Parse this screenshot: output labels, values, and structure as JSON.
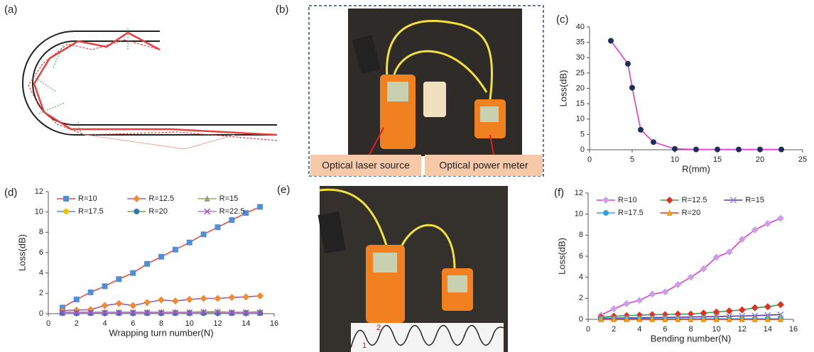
{
  "figure": {
    "panels": {
      "a": "(a)",
      "b": "(b)",
      "e": "(e)"
    },
    "captions": [
      "Optical laser source",
      "Optical power meter"
    ],
    "photo_marks": [
      "1",
      "2"
    ]
  },
  "chart_data": [
    {
      "type": "line",
      "label": "(c)",
      "xlabel": "R(mm)",
      "ylabel": "Loss(dB)",
      "x": [
        2.5,
        4.5,
        5,
        6,
        7.5,
        10,
        12.5,
        15,
        17.5,
        20,
        22.5
      ],
      "series": [
        {
          "color": "#e23cc6",
          "marker": "circle",
          "marker_color": "#1f2d5a",
          "values": [
            35.5,
            28,
            20.2,
            6.5,
            2.5,
            0.3,
            0.1,
            0.1,
            0.1,
            0.1,
            0.1
          ]
        }
      ],
      "xlim": [
        0,
        25
      ],
      "xticks": [
        0,
        5,
        10,
        15,
        20,
        25
      ],
      "ylim": [
        0,
        40
      ],
      "yticks": [
        0,
        5,
        10,
        15,
        20,
        25,
        30,
        35,
        40
      ]
    },
    {
      "type": "line",
      "label": "(d)",
      "xlabel": "Wrapping turn number(N)",
      "ylabel": "Loss(dB)",
      "x": [
        1,
        2,
        3,
        4,
        5,
        6,
        7,
        8,
        9,
        10,
        11,
        12,
        13,
        14,
        15
      ],
      "series": [
        {
          "name": "R=10",
          "color": "#e8503a",
          "marker": "square",
          "marker_color": "#4f8fd8",
          "values": [
            0.6,
            1.4,
            2.1,
            2.7,
            3.4,
            4.0,
            4.9,
            5.6,
            6.3,
            7.0,
            7.8,
            8.5,
            9.2,
            9.9,
            10.5
          ]
        },
        {
          "name": "R=12.5",
          "color": "#9b59b6",
          "marker": "diamond",
          "marker_color": "#f08a30",
          "values": [
            0.3,
            0.35,
            0.4,
            0.8,
            1.0,
            0.8,
            1.1,
            1.35,
            1.25,
            1.4,
            1.5,
            1.5,
            1.6,
            1.65,
            1.75
          ]
        },
        {
          "name": "R=15",
          "color": "#8ab04a",
          "marker": "triangle",
          "marker_color": "#9a9a9a",
          "values": [
            0.15,
            0.15,
            0.15,
            0.15,
            0.15,
            0.15,
            0.15,
            0.15,
            0.15,
            0.15,
            0.2,
            0.2,
            0.15,
            0.15,
            0.2
          ]
        },
        {
          "name": "R=17.5",
          "color": "#4f8fd8",
          "marker": "circle",
          "marker_color": "#f5c000",
          "values": [
            0.1,
            0.1,
            0.1,
            0.1,
            0.1,
            0.1,
            0.1,
            0.1,
            0.1,
            0.1,
            0.1,
            0.1,
            0.1,
            0.1,
            0.1
          ]
        },
        {
          "name": "R=20",
          "color": "#70ad47",
          "marker": "circle",
          "marker_color": "#2e75b6",
          "values": [
            0.05,
            0.05,
            0.05,
            0.05,
            0.05,
            0.05,
            0.05,
            0.05,
            0.05,
            0.05,
            0.05,
            0.05,
            0.05,
            0.05,
            0.05
          ]
        },
        {
          "name": "R=22.5",
          "color": "#b07cd0",
          "marker": "x",
          "marker_color": "#a050c0",
          "values": [
            0.1,
            0.1,
            0.1,
            0.1,
            0.1,
            0.1,
            0.1,
            0.1,
            0.1,
            0.1,
            0.15,
            0.15,
            0.1,
            0.1,
            0.1
          ]
        }
      ],
      "xlim": [
        0,
        16
      ],
      "xticks": [
        0,
        2,
        4,
        6,
        8,
        10,
        12,
        14,
        16
      ],
      "ylim": [
        0,
        12
      ],
      "yticks": [
        0,
        2,
        4,
        6,
        8,
        10,
        12
      ],
      "legend": "upper left",
      "legend_columns": 3
    },
    {
      "type": "line",
      "label": "(f)",
      "xlabel": "Bending number(N)",
      "ylabel": "Loss(dB)",
      "x": [
        1,
        2,
        3,
        4,
        5,
        6,
        7,
        8,
        9,
        10,
        11,
        12,
        13,
        14,
        15
      ],
      "series": [
        {
          "name": "R=10",
          "color": "#e23cc6",
          "marker": "diamond",
          "marker_color": "#c9a0e8",
          "values": [
            0.4,
            1.0,
            1.5,
            1.8,
            2.4,
            2.6,
            3.3,
            4.0,
            4.8,
            5.9,
            6.4,
            7.6,
            8.5,
            9.1,
            9.6
          ]
        },
        {
          "name": "R=12.5",
          "color": "#2ca84a",
          "marker": "diamond",
          "marker_color": "#e03020",
          "values": [
            0.2,
            0.3,
            0.35,
            0.4,
            0.45,
            0.45,
            0.5,
            0.5,
            0.6,
            0.7,
            0.8,
            0.9,
            1.1,
            1.2,
            1.4
          ]
        },
        {
          "name": "R=15",
          "color": "#7030a0",
          "marker": "x",
          "marker_color": "#7a8fd0",
          "values": [
            0.1,
            0.12,
            0.14,
            0.15,
            0.17,
            0.18,
            0.2,
            0.22,
            0.25,
            0.27,
            0.3,
            0.32,
            0.35,
            0.4,
            0.45
          ]
        },
        {
          "name": "R=17.5",
          "color": "#3aa0e0",
          "marker": "circle",
          "marker_color": "#3aa0e0",
          "values": [
            0.05,
            0.05,
            0.05,
            0.05,
            0.05,
            0.05,
            0.05,
            0.05,
            0.05,
            0.05,
            0.05,
            0.05,
            0.05,
            0.05,
            0.05
          ]
        },
        {
          "name": "R=20",
          "color": "#e83020",
          "marker": "triangle",
          "marker_color": "#f5a000",
          "values": [
            0,
            0,
            0,
            0,
            0,
            0,
            0,
            0,
            0,
            0,
            0,
            0,
            0,
            0,
            0
          ]
        }
      ],
      "xlim": [
        0,
        16
      ],
      "xticks": [
        0,
        2,
        4,
        6,
        8,
        10,
        12,
        14,
        16
      ],
      "ylim": [
        0,
        12
      ],
      "yticks": [
        0,
        2,
        4,
        6,
        8,
        10,
        12
      ],
      "legend": "upper left",
      "legend_columns": 3
    }
  ]
}
